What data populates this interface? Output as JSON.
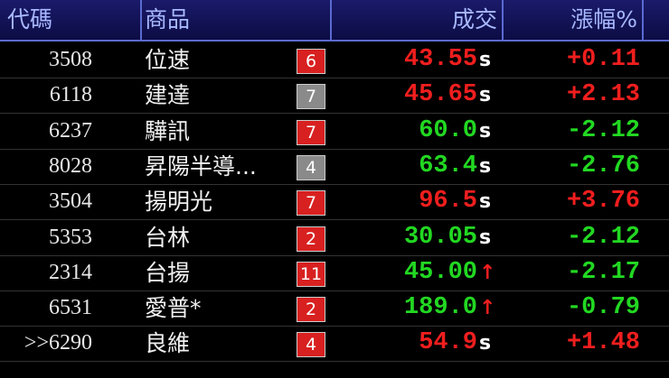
{
  "header": {
    "code": "代碼",
    "name": "商品",
    "price": "成交",
    "change": "漲幅%"
  },
  "rows": [
    {
      "code": "3508",
      "name": "位速",
      "badge": "6",
      "badge_color": "red",
      "price": "43.55",
      "suffix": "s",
      "color": "red",
      "change": "+0.11"
    },
    {
      "code": "6118",
      "name": "建達",
      "badge": "7",
      "badge_color": "gray",
      "price": "45.65",
      "suffix": "s",
      "color": "red",
      "change": "+2.13"
    },
    {
      "code": "6237",
      "name": "驊訊",
      "badge": "7",
      "badge_color": "red",
      "price": "60.0",
      "suffix": "s",
      "color": "green",
      "change": "-2.12"
    },
    {
      "code": "8028",
      "name": "昇陽半導...",
      "badge": "4",
      "badge_color": "gray",
      "price": "63.4",
      "suffix": "s",
      "color": "green",
      "change": "-2.76"
    },
    {
      "code": "3504",
      "name": "揚明光",
      "badge": "7",
      "badge_color": "red",
      "price": "96.5",
      "suffix": "s",
      "color": "red",
      "change": "+3.76"
    },
    {
      "code": "5353",
      "name": "台林",
      "badge": "2",
      "badge_color": "red",
      "price": "30.05",
      "suffix": "s",
      "color": "green",
      "change": "-2.12"
    },
    {
      "code": "2314",
      "name": "台揚",
      "badge": "11",
      "badge_color": "red",
      "price": "45.00",
      "suffix": "↑",
      "color": "green",
      "change": "-2.17"
    },
    {
      "code": "6531",
      "name": "愛普*",
      "badge": "2",
      "badge_color": "red",
      "price": "189.0",
      "suffix": "↑",
      "color": "green",
      "change": "-0.79"
    },
    {
      "code": ">>6290",
      "name": "良維",
      "badge": "4",
      "badge_color": "red",
      "price": "54.9",
      "suffix": "s",
      "color": "red",
      "change": "+1.48"
    }
  ]
}
